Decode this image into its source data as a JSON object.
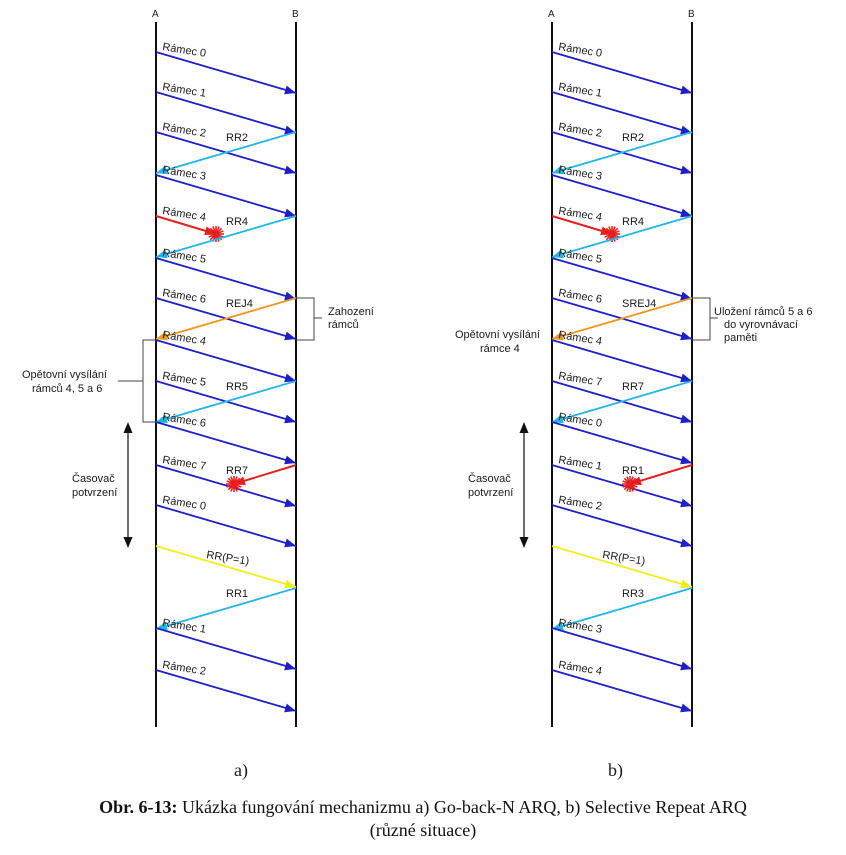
{
  "panels": [
    {
      "id": "a",
      "label": "a)",
      "axis_a": "A",
      "axis_b": "B",
      "messages": [
        {
          "dir": "ab",
          "color": "#1f1fc8",
          "label": "Rámec 0"
        },
        {
          "dir": "ab",
          "color": "#1f1fc8",
          "label": "Rámec 1"
        },
        {
          "dir": "ab",
          "color": "#1f1fc8",
          "label": "Rámec 2"
        },
        {
          "dir": "ba",
          "color": "#22b5e6",
          "label": "RR2"
        },
        {
          "dir": "ab",
          "color": "#1f1fc8",
          "label": "Rámec 3"
        },
        {
          "dir": "ab",
          "color": "#e81f1f",
          "label": "Rámec 4",
          "lost": true
        },
        {
          "dir": "ba",
          "color": "#22b5e6",
          "label": "RR4"
        },
        {
          "dir": "ab",
          "color": "#1f1fc8",
          "label": "Rámec 5"
        },
        {
          "dir": "ab",
          "color": "#1f1fc8",
          "label": "Rámec 6"
        },
        {
          "dir": "ba",
          "color": "#f0961e",
          "label": "REJ4"
        },
        {
          "dir": "ab",
          "color": "#1f1fc8",
          "label": "Rámec 4"
        },
        {
          "dir": "ab",
          "color": "#1f1fc8",
          "label": "Rámec 5"
        },
        {
          "dir": "ba",
          "color": "#22b5e6",
          "label": "RR5"
        },
        {
          "dir": "ab",
          "color": "#1f1fc8",
          "label": "Rámec 6"
        },
        {
          "dir": "ab",
          "color": "#1f1fc8",
          "label": "Rámec 7"
        },
        {
          "dir": "ba",
          "color": "#e81f1f",
          "label": "RR7",
          "lost": true
        },
        {
          "dir": "ab",
          "color": "#1f1fc8",
          "label": "Rámec 0"
        },
        {
          "dir": "ab",
          "color": "#f2ee1a",
          "label": "RR(P=1)"
        },
        {
          "dir": "ba",
          "color": "#22b5e6",
          "label": "RR1"
        },
        {
          "dir": "ab",
          "color": "#1f1fc8",
          "label": "Rámec 1"
        },
        {
          "dir": "ab",
          "color": "#1f1fc8",
          "label": "Rámec 2"
        }
      ],
      "annotations": {
        "right_bracket": [
          "Zahození",
          "rámců"
        ],
        "left_bracket": [
          "Opětovní vysílání",
          "rámců 4, 5 a 6"
        ],
        "timer": [
          "Časovač",
          "potvrzení"
        ]
      }
    },
    {
      "id": "b",
      "label": "b)",
      "axis_a": "A",
      "axis_b": "B",
      "messages": [
        {
          "dir": "ab",
          "color": "#1f1fc8",
          "label": "Rámec 0"
        },
        {
          "dir": "ab",
          "color": "#1f1fc8",
          "label": "Rámec 1"
        },
        {
          "dir": "ab",
          "color": "#1f1fc8",
          "label": "Rámec 2"
        },
        {
          "dir": "ba",
          "color": "#22b5e6",
          "label": "RR2"
        },
        {
          "dir": "ab",
          "color": "#1f1fc8",
          "label": "Rámec 3"
        },
        {
          "dir": "ab",
          "color": "#e81f1f",
          "label": "Rámec 4",
          "lost": true
        },
        {
          "dir": "ba",
          "color": "#22b5e6",
          "label": "RR4"
        },
        {
          "dir": "ab",
          "color": "#1f1fc8",
          "label": "Rámec 5"
        },
        {
          "dir": "ab",
          "color": "#1f1fc8",
          "label": "Rámec 6"
        },
        {
          "dir": "ba",
          "color": "#f0961e",
          "label": "SREJ4"
        },
        {
          "dir": "ab",
          "color": "#1f1fc8",
          "label": "Rámec 4"
        },
        {
          "dir": "ab",
          "color": "#1f1fc8",
          "label": "Rámec 7"
        },
        {
          "dir": "ba",
          "color": "#22b5e6",
          "label": "RR7"
        },
        {
          "dir": "ab",
          "color": "#1f1fc8",
          "label": "Rámec 0"
        },
        {
          "dir": "ab",
          "color": "#1f1fc8",
          "label": "Rámec 1"
        },
        {
          "dir": "ba",
          "color": "#e81f1f",
          "label": "RR1",
          "lost": true
        },
        {
          "dir": "ab",
          "color": "#1f1fc8",
          "label": "Rámec 2"
        },
        {
          "dir": "ab",
          "color": "#f2ee1a",
          "label": "RR(P=1)"
        },
        {
          "dir": "ba",
          "color": "#22b5e6",
          "label": "RR3"
        },
        {
          "dir": "ab",
          "color": "#1f1fc8",
          "label": "Rámec 3"
        },
        {
          "dir": "ab",
          "color": "#1f1fc8",
          "label": "Rámec 4"
        }
      ],
      "annotations": {
        "right_bracket": [
          "Uložení rámců 5 a 6",
          "do vyrovnávací",
          "paměti"
        ],
        "left_text": [
          "Opětovní vysílání",
          "rámce 4"
        ],
        "timer": [
          "Časovač",
          "potvrzení"
        ]
      }
    }
  ],
  "caption": {
    "bold": "Obr. 6-13:",
    "line1": " Ukázka fungování mechanizmu a) Go-back-N ARQ, b) Selective Repeat ARQ",
    "line2": "(různé situace)"
  }
}
